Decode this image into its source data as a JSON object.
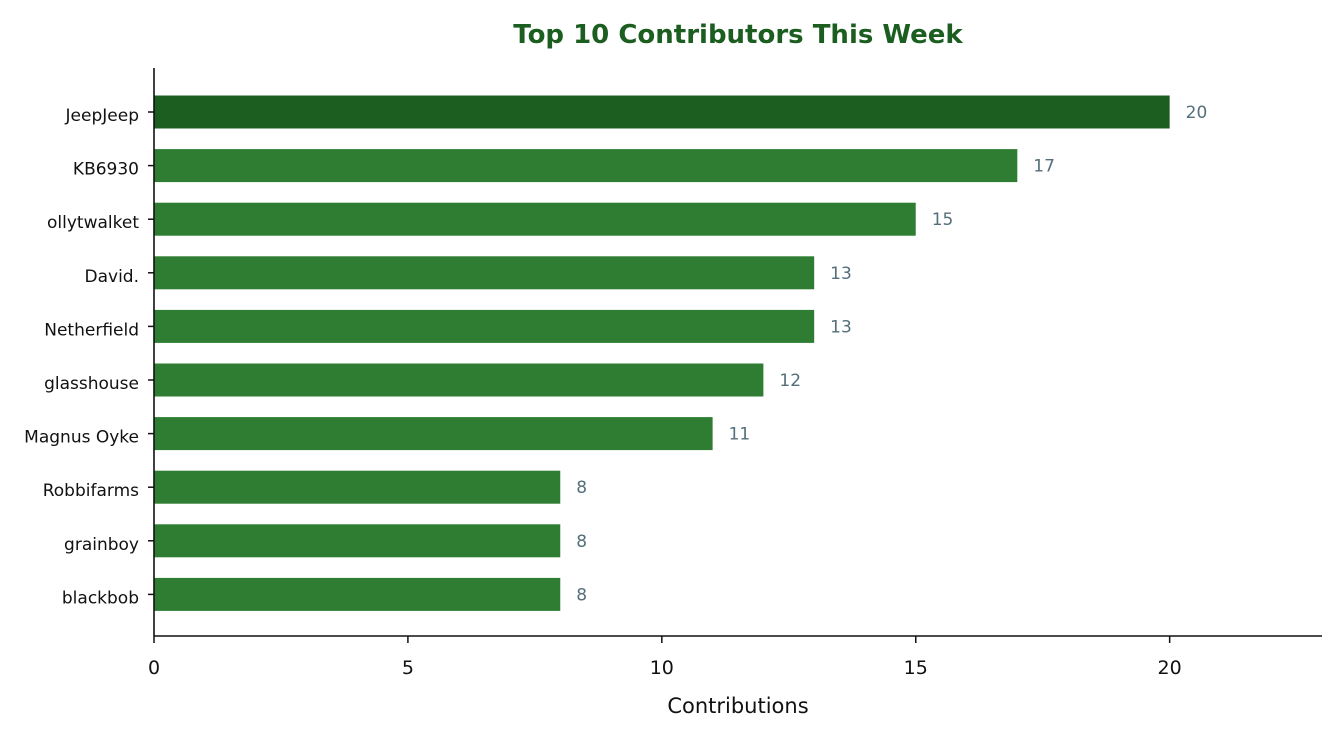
{
  "chart_data": {
    "type": "bar",
    "orientation": "horizontal",
    "title": "Top 10 Contributors This Week",
    "xlabel": "Contributions",
    "ylabel": "",
    "categories": [
      "JeepJeep",
      "KB6930",
      "ollytwalket",
      "David.",
      "Netherfield",
      "glasshouse",
      "Magnus Oyke",
      "Robbifarms",
      "grainboy",
      "blackbob"
    ],
    "values": [
      20,
      17,
      15,
      13,
      13,
      12,
      11,
      8,
      8,
      8
    ],
    "value_labels": [
      "20",
      "17",
      "15",
      "13",
      "13",
      "12",
      "11",
      "8",
      "8",
      "8"
    ],
    "xlim": [
      0,
      23
    ],
    "xticks": [
      0,
      5,
      10,
      15,
      20
    ],
    "xtick_labels": [
      "0",
      "5",
      "10",
      "15",
      "20"
    ],
    "grid": false,
    "highlight_index": 0,
    "colors": {
      "title": "#1b5e20",
      "bar": "#2e7d32",
      "bar_highlight": "#1b5e20",
      "value_label": "#546e7a",
      "axis": "#111111"
    }
  }
}
